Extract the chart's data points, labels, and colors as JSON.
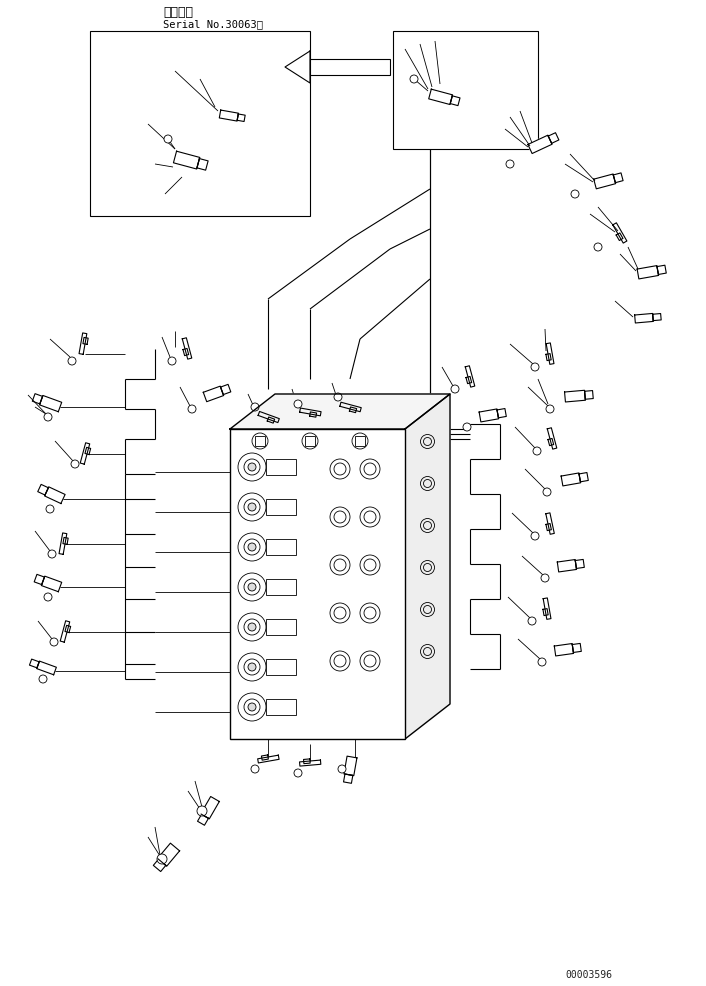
{
  "title_line1": "適用号機",
  "title_line2": "Serial No.30063～",
  "part_number": "00003596",
  "bg_color": "#ffffff",
  "line_color": "#000000",
  "fig_width": 7.06,
  "fig_height": 9.87,
  "dpi": 100
}
